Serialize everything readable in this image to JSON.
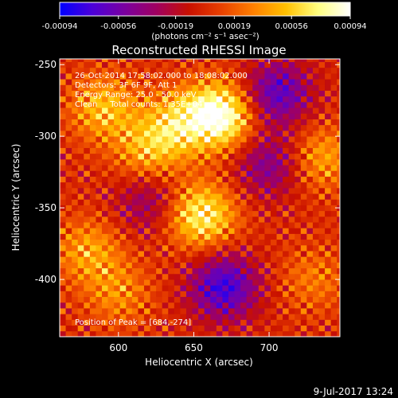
{
  "colorbar": {
    "tick_labels": [
      "-0.00094",
      "-0.00056",
      "-0.00019",
      "0.00019",
      "0.00056",
      "0.00094"
    ],
    "tick_values": [
      -0.00094,
      -0.00056,
      -0.00019,
      0.00019,
      0.00056,
      0.00094
    ],
    "range": [
      -0.00094,
      0.00094
    ],
    "unit_label": "(photons cm⁻² s⁻¹ asec⁻²)",
    "colormap": [
      "#0000ff",
      "#4b00d8",
      "#7a00a0",
      "#a00060",
      "#c81000",
      "#e84000",
      "#ff8000",
      "#ffc000",
      "#ffff80",
      "#ffffff"
    ]
  },
  "chart_data": {
    "type": "heatmap",
    "title": "Reconstructed RHESSI Image",
    "xlabel": "Heliocentric X (arcsec)",
    "ylabel": "Heliocentric Y (arcsec)",
    "x_tick_labels": [
      "600",
      "650",
      "700"
    ],
    "x_ticks": [
      600,
      650,
      700
    ],
    "y_tick_labels": [
      "-250",
      "-300",
      "-350",
      "-400"
    ],
    "y_ticks": [
      -250,
      -300,
      -350,
      -400
    ],
    "xlim": [
      561,
      747
    ],
    "ylim": [
      -440,
      -246
    ],
    "grid": false,
    "info_lines": [
      "26-Oct-2014 17:58:02.000 to 18:08:02.000",
      "Detectors: 3F 6F 9F, Att 1",
      "Energy Range: 25.0 - 50.0 keV",
      "Clean     Total counts: 1.35E+04"
    ],
    "peak_label": "Position of Peak = [684,-274]",
    "peak": [
      684,
      -274
    ],
    "pixel_size_arcsec": 4,
    "sources": [
      {
        "x": 668,
        "y": -285,
        "amplitude": 1.0
      },
      {
        "x": 640,
        "y": -290,
        "amplitude": 0.55
      },
      {
        "x": 620,
        "y": -310,
        "amplitude": 0.5
      },
      {
        "x": 655,
        "y": -355,
        "amplitude": 0.8
      },
      {
        "x": 590,
        "y": -280,
        "amplitude": 0.55
      },
      {
        "x": 580,
        "y": -380,
        "amplitude": 0.45
      },
      {
        "x": 600,
        "y": -410,
        "amplitude": 0.35
      },
      {
        "x": 735,
        "y": -315,
        "amplitude": 0.45
      },
      {
        "x": 730,
        "y": -400,
        "amplitude": 0.3
      }
    ],
    "negative_regions": [
      {
        "x": 705,
        "y": -270,
        "amplitude": -0.7
      },
      {
        "x": 670,
        "y": -405,
        "amplitude": -0.8
      },
      {
        "x": 700,
        "y": -320,
        "amplitude": -0.5
      },
      {
        "x": 620,
        "y": -345,
        "amplitude": -0.4
      }
    ]
  },
  "footer": {
    "date": "9-Jul-2017 13:24"
  }
}
